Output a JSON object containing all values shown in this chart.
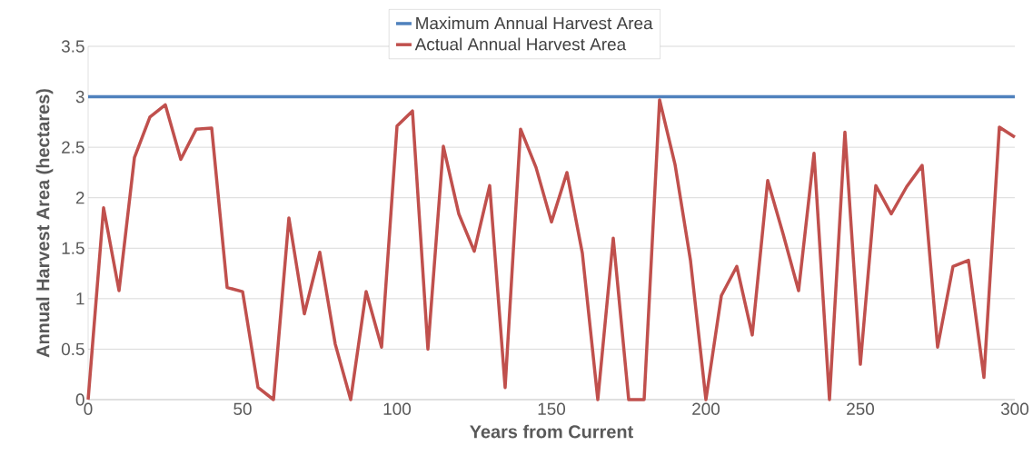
{
  "chart_data": {
    "type": "line",
    "xlabel": "Years from Current",
    "ylabel": "Annual Harvest Area (hectares)",
    "xlim": [
      0,
      300
    ],
    "ylim": [
      0,
      3.5
    ],
    "xticks": [
      0,
      50,
      100,
      150,
      200,
      250,
      300
    ],
    "yticks": [
      0,
      0.5,
      1,
      1.5,
      2,
      2.5,
      3,
      3.5
    ],
    "grid": "y",
    "legend": "top",
    "marker": "none",
    "series": [
      {
        "name": "Maximum Annual Harvest Area",
        "color": "#4f81bd",
        "x": [
          0,
          300
        ],
        "values": [
          3,
          3
        ]
      },
      {
        "name": "Actual Annual Harvest Area",
        "color": "#c0504d",
        "x": [
          0,
          5,
          10,
          15,
          20,
          25,
          30,
          35,
          40,
          45,
          50,
          55,
          60,
          65,
          70,
          75,
          80,
          85,
          90,
          95,
          100,
          105,
          110,
          115,
          120,
          125,
          130,
          135,
          140,
          145,
          150,
          155,
          160,
          165,
          170,
          175,
          180,
          185,
          190,
          195,
          200,
          205,
          210,
          215,
          220,
          225,
          230,
          235,
          240,
          245,
          250,
          255,
          260,
          265,
          270,
          275,
          280,
          285,
          290,
          295,
          300
        ],
        "values": [
          0,
          1.9,
          1.08,
          2.4,
          2.8,
          2.92,
          2.38,
          2.68,
          2.69,
          1.11,
          1.07,
          0.12,
          0,
          1.8,
          0.85,
          1.46,
          0.55,
          0,
          1.07,
          0.52,
          2.71,
          2.86,
          0.5,
          2.51,
          1.84,
          1.47,
          2.12,
          0.12,
          2.68,
          2.3,
          1.76,
          2.25,
          1.45,
          0,
          1.6,
          0,
          0,
          2.97,
          2.33,
          1.38,
          0,
          1.03,
          1.32,
          0.64,
          2.17,
          1.64,
          1.08,
          2.44,
          0,
          2.65,
          0.35,
          2.12,
          1.84,
          2.11,
          2.32,
          0.52,
          1.32,
          1.38,
          0.22,
          2.7,
          2.6
        ]
      }
    ]
  }
}
